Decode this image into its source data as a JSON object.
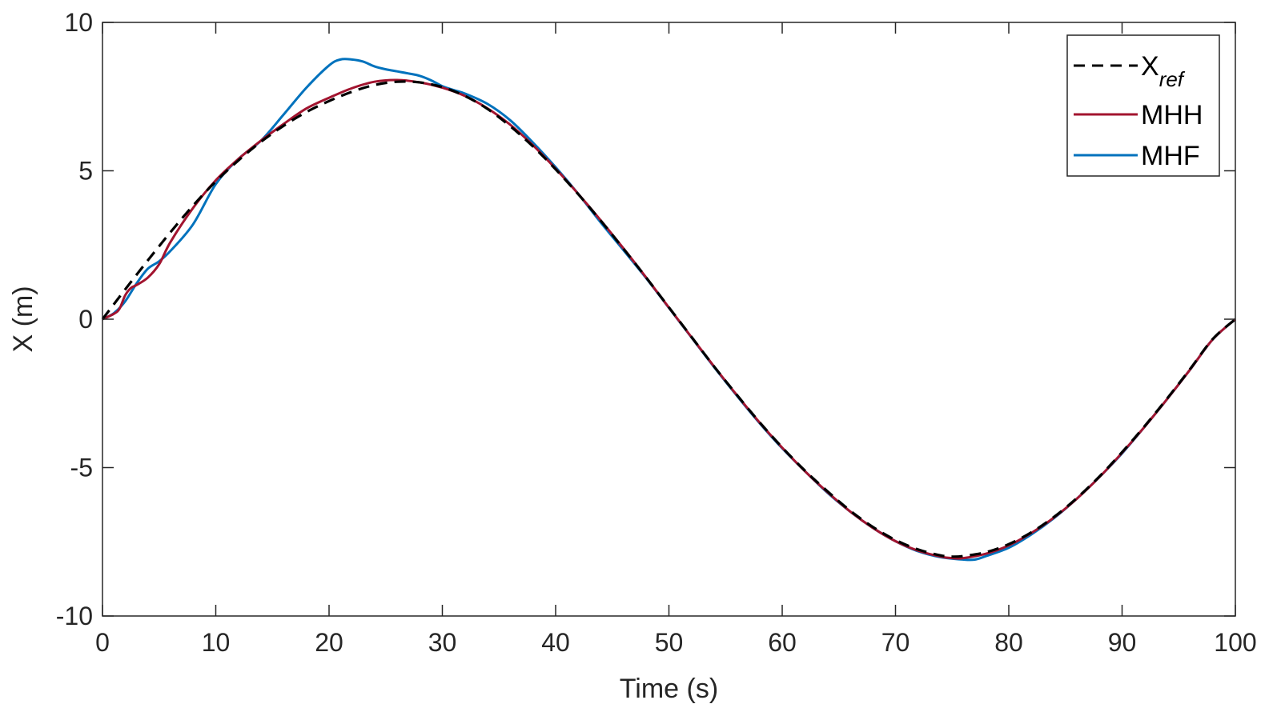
{
  "chart_data": {
    "type": "line",
    "title": "",
    "xlabel": "Time (s)",
    "ylabel": "X (m)",
    "xlim": [
      0,
      100
    ],
    "ylim": [
      -10,
      10
    ],
    "xticks": [
      0,
      10,
      20,
      30,
      40,
      50,
      60,
      70,
      80,
      90,
      100
    ],
    "yticks": [
      -10,
      -5,
      0,
      5,
      10
    ],
    "xtick_labels": [
      "0",
      "10",
      "20",
      "30",
      "40",
      "50",
      "60",
      "70",
      "80",
      "90",
      "100"
    ],
    "ytick_labels": [
      "-10",
      "-5",
      "0",
      "5",
      "10"
    ],
    "grid": false,
    "legend_position": "top-right",
    "series": [
      {
        "name": "X",
        "name_subscript": "ref",
        "style": "dashed",
        "color": "#000000",
        "x": [
          0,
          2,
          4,
          6,
          8,
          10,
          12,
          14,
          16,
          18,
          20,
          22,
          24,
          26,
          28,
          30,
          32,
          34,
          36,
          38,
          40,
          42,
          44,
          46,
          48,
          50,
          52,
          54,
          56,
          58,
          60,
          62,
          64,
          66,
          68,
          70,
          72,
          74,
          75,
          76,
          78,
          80,
          82,
          84,
          86,
          88,
          90,
          92,
          94,
          96,
          98,
          100
        ],
        "y": [
          0,
          1.0,
          1.98,
          2.93,
          3.83,
          4.64,
          5.35,
          5.98,
          6.52,
          6.98,
          7.35,
          7.66,
          7.89,
          8.0,
          7.98,
          7.82,
          7.52,
          7.08,
          6.5,
          5.82,
          5.05,
          4.21,
          3.31,
          2.37,
          1.4,
          0.4,
          -0.6,
          -1.6,
          -2.55,
          -3.47,
          -4.32,
          -5.1,
          -5.8,
          -6.45,
          -7.0,
          -7.44,
          -7.76,
          -7.96,
          -8.0,
          -7.98,
          -7.85,
          -7.58,
          -7.18,
          -6.66,
          -6.03,
          -5.3,
          -4.48,
          -3.6,
          -2.66,
          -1.68,
          -0.67,
          0
        ]
      },
      {
        "name": "MHH",
        "style": "solid",
        "color": "#a2142f",
        "x": [
          0,
          1,
          1.5,
          2,
          2.5,
          3,
          4,
          5,
          6,
          8,
          10,
          12,
          14,
          16,
          18,
          20,
          22,
          24,
          26,
          28,
          30,
          32,
          34,
          36,
          38,
          40,
          42,
          44,
          46,
          48,
          50,
          52,
          54,
          56,
          58,
          60,
          62,
          64,
          66,
          68,
          70,
          72,
          74,
          75,
          76,
          78,
          80,
          82,
          84,
          86,
          88,
          90,
          92,
          94,
          96,
          98,
          100
        ],
        "y": [
          0,
          0.18,
          0.35,
          0.8,
          1.05,
          1.15,
          1.4,
          1.85,
          2.6,
          3.75,
          4.68,
          5.4,
          6.02,
          6.58,
          7.1,
          7.46,
          7.78,
          8.0,
          8.06,
          7.98,
          7.8,
          7.52,
          7.1,
          6.55,
          5.86,
          5.07,
          4.22,
          3.32,
          2.38,
          1.4,
          0.39,
          -0.61,
          -1.6,
          -2.56,
          -3.48,
          -4.33,
          -5.12,
          -5.83,
          -6.48,
          -7.03,
          -7.48,
          -7.8,
          -8.0,
          -8.05,
          -8.05,
          -7.9,
          -7.62,
          -7.2,
          -6.68,
          -6.05,
          -5.32,
          -4.5,
          -3.62,
          -2.68,
          -1.7,
          -0.68,
          0
        ]
      },
      {
        "name": "MHF",
        "style": "solid",
        "color": "#0072bd",
        "x": [
          0,
          1,
          2,
          3,
          4,
          5,
          6,
          8,
          10,
          12,
          14,
          16,
          18,
          20,
          21,
          22,
          23,
          24,
          25,
          26,
          27,
          28,
          29,
          30,
          31,
          32,
          34,
          36,
          38,
          40,
          42,
          44,
          46,
          48,
          50,
          52,
          54,
          56,
          58,
          60,
          62,
          64,
          66,
          68,
          70,
          72,
          74,
          76,
          77,
          78,
          80,
          82,
          84,
          86,
          88,
          90,
          92,
          94,
          96,
          98,
          100
        ],
        "y": [
          0,
          0.2,
          0.6,
          1.2,
          1.7,
          1.95,
          2.3,
          3.2,
          4.55,
          5.4,
          6.02,
          6.9,
          7.8,
          8.55,
          8.75,
          8.75,
          8.68,
          8.52,
          8.42,
          8.35,
          8.28,
          8.2,
          8.05,
          7.85,
          7.72,
          7.6,
          7.25,
          6.7,
          5.95,
          5.12,
          4.22,
          3.25,
          2.32,
          1.38,
          0.38,
          -0.62,
          -1.62,
          -2.58,
          -3.5,
          -4.35,
          -5.12,
          -5.85,
          -6.48,
          -7.03,
          -7.48,
          -7.82,
          -8.02,
          -8.1,
          -8.1,
          -7.98,
          -7.7,
          -7.25,
          -6.7,
          -6.05,
          -5.32,
          -4.52,
          -3.62,
          -2.68,
          -1.7,
          -0.68,
          0
        ]
      }
    ]
  }
}
